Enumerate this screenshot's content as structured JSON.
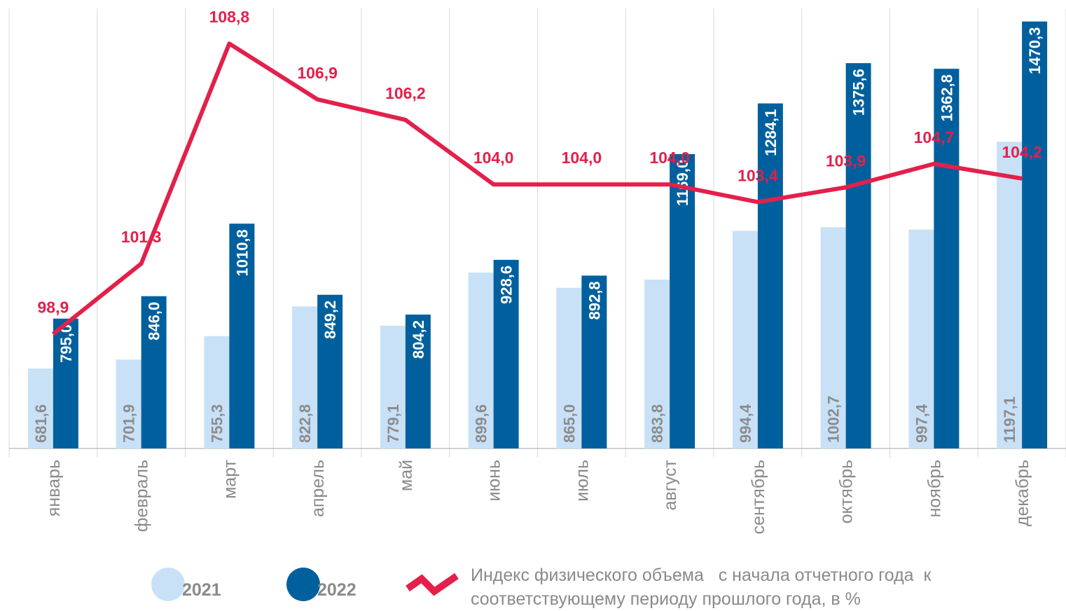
{
  "chart_data": {
    "type": "bar",
    "categories": [
      "январь",
      "февраль",
      "март",
      "апрель",
      "май",
      "июнь",
      "июль",
      "август",
      "сентябрь",
      "октябрь",
      "ноябрь",
      "декабрь"
    ],
    "series": [
      {
        "name": "2021",
        "color": "#c8e1f6",
        "label_color": "#8c8c8c",
        "values": [
          681.6,
          701.9,
          755.3,
          822.8,
          779.1,
          899.6,
          865.0,
          883.8,
          994.4,
          1002.7,
          997.4,
          1197.1
        ],
        "value_labels": [
          "681,6",
          "701,9",
          "755,3",
          "822,8",
          "779,1",
          "899,6",
          "865,0",
          "883,8",
          "994,4",
          "1002,7",
          "997,4",
          "1197,1"
        ]
      },
      {
        "name": "2022",
        "color": "#00609e",
        "label_color": "#ffffff",
        "values": [
          795.0,
          846.0,
          1010.8,
          849.2,
          804.2,
          928.6,
          892.8,
          1169.0,
          1284.1,
          1375.6,
          1362.8,
          1470.3
        ],
        "value_labels": [
          "795,0",
          "846,0",
          "1010,8",
          "849,2",
          "804,2",
          "928,6",
          "892,8",
          "1169,0",
          "1284,1",
          "1375,6",
          "1362,8",
          "1470,3"
        ]
      },
      {
        "name": "Индекс физического объема   с начала отчетного года  к соответствующему периоду прошлого года, в %",
        "type": "line",
        "axis": "y2",
        "color": "#e3204b",
        "values": [
          98.9,
          101.3,
          108.8,
          106.9,
          106.2,
          104.0,
          104.0,
          104.0,
          103.4,
          103.9,
          104.7,
          104.2
        ],
        "value_labels": [
          "98,9",
          "101,3",
          "108,8",
          "106,9",
          "106,2",
          "104,0",
          "104,0",
          "104,0",
          "103,4",
          "103,9",
          "104,7",
          "104,2"
        ]
      }
    ],
    "ylim": [
      500,
      1500
    ],
    "y2lim": [
      95,
      110
    ]
  }
}
